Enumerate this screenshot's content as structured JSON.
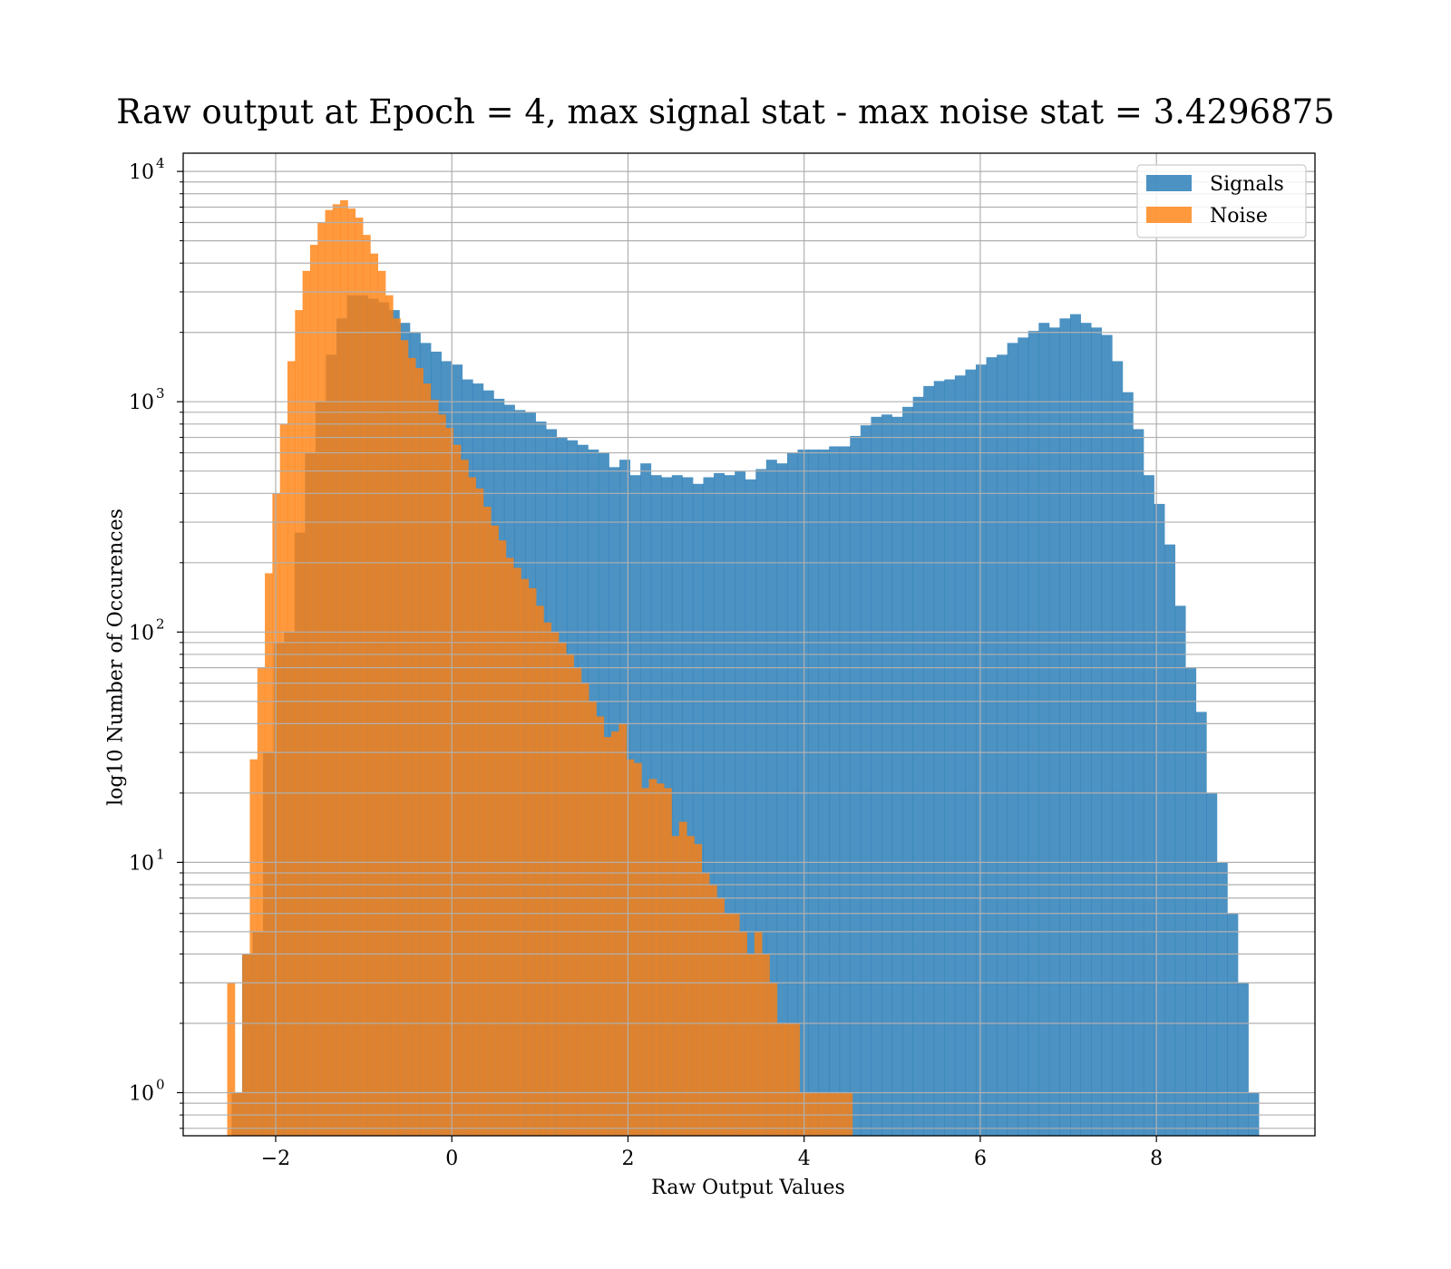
{
  "chart_data": {
    "type": "bar",
    "title": "Raw output at Epoch = 4, max signal stat - max noise stat = 3.4296875",
    "xlabel": "Raw Output Values",
    "ylabel": "log10 Number of Occurences",
    "xlim": [
      -3.05,
      9.8
    ],
    "ylim": [
      0.65,
      12000
    ],
    "yscale": "log",
    "grid": true,
    "legend_position": "top-right",
    "x_ticks": [
      -2,
      0,
      2,
      4,
      6,
      8
    ],
    "x_tick_labels": [
      "−2",
      "0",
      "2",
      "4",
      "6",
      "8"
    ],
    "y_ticks": [
      1,
      10,
      100,
      1000,
      10000
    ],
    "y_tick_labels": [
      [
        "10",
        "0"
      ],
      [
        "10",
        "1"
      ],
      [
        "10",
        "2"
      ],
      [
        "10",
        "3"
      ],
      [
        "10",
        "4"
      ]
    ],
    "series": [
      {
        "name": "Signals",
        "color": "#1f77b4",
        "opacity": 0.8,
        "bin_start": -2.5,
        "bin_width": 0.119,
        "values": [
          1,
          4,
          5,
          30,
          90,
          100,
          270,
          600,
          1000,
          1600,
          2300,
          2900,
          2900,
          2800,
          2700,
          2500,
          2200,
          2000,
          1800,
          1650,
          1500,
          1450,
          1250,
          1200,
          1120,
          1030,
          970,
          920,
          900,
          820,
          760,
          700,
          680,
          650,
          620,
          600,
          520,
          560,
          480,
          540,
          480,
          470,
          480,
          470,
          440,
          470,
          490,
          480,
          500,
          460,
          510,
          560,
          540,
          600,
          620,
          620,
          620,
          640,
          640,
          710,
          790,
          860,
          880,
          860,
          950,
          1050,
          1170,
          1230,
          1250,
          1300,
          1380,
          1450,
          1560,
          1600,
          1800,
          1900,
          2030,
          2200,
          2100,
          2300,
          2400,
          2200,
          2100,
          1950,
          1500,
          1100,
          760,
          480,
          360,
          240,
          130,
          70,
          45,
          20,
          10,
          6,
          3,
          1
        ]
      },
      {
        "name": "Noise",
        "color": "#ff7f0e",
        "opacity": 0.8,
        "bin_start": -2.55,
        "bin_width": 0.0855,
        "values": [
          3,
          1,
          4,
          28,
          70,
          180,
          400,
          800,
          1500,
          2500,
          3700,
          4800,
          6000,
          6800,
          7200,
          7500,
          6900,
          6300,
          5300,
          4400,
          3700,
          2900,
          2300,
          1850,
          1550,
          1400,
          1200,
          1020,
          880,
          770,
          650,
          560,
          470,
          420,
          350,
          290,
          250,
          210,
          190,
          170,
          155,
          130,
          110,
          100,
          90,
          80,
          70,
          60,
          50,
          43,
          35,
          37,
          40,
          28,
          27,
          21,
          23,
          22,
          21,
          13,
          15,
          13,
          12,
          9,
          8,
          7,
          6,
          6,
          5,
          4,
          5,
          4,
          3,
          2,
          2,
          2,
          1,
          1,
          1,
          1,
          1,
          1,
          1
        ]
      }
    ],
    "legend": [
      {
        "label": "Signals",
        "color": "#1f77b4"
      },
      {
        "label": "Noise",
        "color": "#ff7f0e"
      }
    ]
  }
}
